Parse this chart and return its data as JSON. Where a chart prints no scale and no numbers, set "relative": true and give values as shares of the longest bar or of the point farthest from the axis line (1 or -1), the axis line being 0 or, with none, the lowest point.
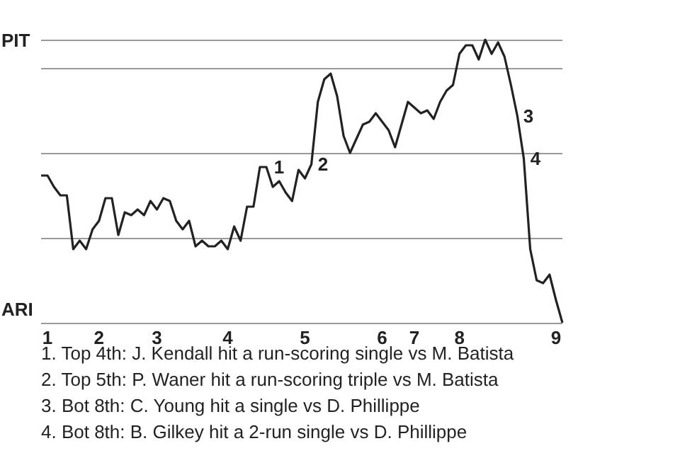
{
  "chart_data": {
    "type": "line",
    "relative": true,
    "categories": [
      null,
      "1",
      null,
      null,
      null,
      null,
      null,
      null,
      null,
      "2",
      null,
      null,
      null,
      null,
      null,
      null,
      null,
      null,
      "3",
      null,
      null,
      null,
      null,
      null,
      null,
      null,
      null,
      null,
      null,
      "4",
      null,
      null,
      null,
      null,
      null,
      null,
      null,
      null,
      null,
      null,
      null,
      "5",
      null,
      null,
      null,
      null,
      null,
      null,
      null,
      null,
      null,
      null,
      null,
      "6",
      null,
      null,
      null,
      null,
      "7",
      null,
      null,
      null,
      null,
      null,
      null,
      "8",
      null,
      null,
      null,
      null,
      null,
      null,
      null,
      null,
      null,
      null,
      null,
      null,
      null,
      null,
      "9",
      null
    ],
    "series": [
      {
        "color": "#222222",
        "values": [
          0.52,
          0.52,
          0.48,
          0.45,
          0.45,
          0.26,
          0.29,
          0.26,
          0.33,
          0.36,
          0.44,
          0.44,
          0.31,
          0.39,
          0.38,
          0.4,
          0.38,
          0.43,
          0.4,
          0.44,
          0.43,
          0.36,
          0.33,
          0.36,
          0.27,
          0.29,
          0.27,
          0.27,
          0.29,
          0.26,
          0.34,
          0.29,
          0.41,
          0.41,
          0.55,
          0.55,
          0.48,
          0.5,
          0.46,
          0.43,
          0.54,
          0.51,
          0.56,
          0.78,
          0.86,
          0.88,
          0.8,
          0.66,
          0.6,
          0.65,
          0.7,
          0.71,
          0.74,
          0.71,
          0.68,
          0.62,
          0.7,
          0.78,
          0.76,
          0.74,
          0.75,
          0.72,
          0.78,
          0.82,
          0.84,
          0.95,
          0.98,
          0.98,
          0.93,
          1,
          0.95,
          0.99,
          0.94,
          0.84,
          0.73,
          0.58,
          0.26,
          0.15,
          0.14,
          0.17,
          0.08,
          0
        ]
      }
    ],
    "grid": "y",
    "marker": "none",
    "line_style": "solid",
    "annotations": [
      "PIT",
      "ARI",
      "1",
      "2",
      "3",
      "4",
      "1. Top 4th: J. Kendall hit a run-scoring single vs M. Batista",
      "2. Top 5th: P. Waner hit a run-scoring triple vs M. Batista",
      "3. Bot 8th: C. Young hit a single vs D. Phillippe",
      "4. Bot 8th: B. Gilkey hit a 2-run single vs D. Phillippe"
    ]
  }
}
